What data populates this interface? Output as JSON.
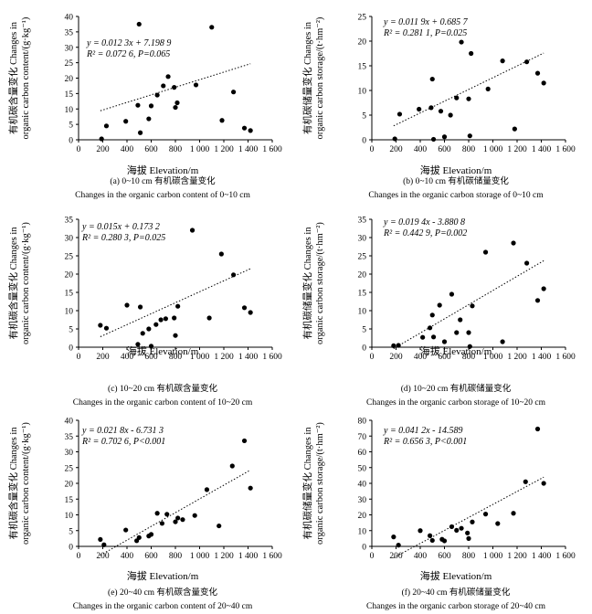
{
  "chart_data": [
    {
      "type": "scatter",
      "panel": "a",
      "ylabel_lines": [
        "有机碳含量变化 Changes in",
        "organic carbon content/(g·kg⁻¹)"
      ],
      "xlabel": "海拔 Elevation/m",
      "xticks": [
        "0",
        "200",
        "400",
        "600",
        "800",
        "1 000",
        "1 200",
        "1 400",
        "1 600"
      ],
      "xlim": [
        0,
        1600
      ],
      "yticks": [
        "0",
        "5",
        "10",
        "15",
        "20",
        "25",
        "30",
        "35",
        "40"
      ],
      "ylim": [
        0,
        40
      ],
      "equation": "y = 0.012 3x + 7.198 9",
      "r2": "R² = 0.072 6, P=0.065",
      "trend": [
        0.0123,
        7.1989
      ],
      "caption_cn": "(a) 0~10 cm 有机碳含量变化",
      "caption_en": "Changes in the organic carbon content of 0~10 cm",
      "points": [
        [
          190,
          0.3
        ],
        [
          230,
          4.5
        ],
        [
          390,
          6
        ],
        [
          490,
          11.2
        ],
        [
          500,
          37.5
        ],
        [
          510,
          2.3
        ],
        [
          580,
          6.8
        ],
        [
          600,
          11
        ],
        [
          650,
          14.5
        ],
        [
          700,
          17.5
        ],
        [
          740,
          20.5
        ],
        [
          790,
          17
        ],
        [
          800,
          10.5
        ],
        [
          815,
          12
        ],
        [
          970,
          17.8
        ],
        [
          1100,
          36.5
        ],
        [
          1185,
          6.3
        ],
        [
          1280,
          15.5
        ],
        [
          1370,
          3.8
        ],
        [
          1420,
          3
        ]
      ]
    },
    {
      "type": "scatter",
      "panel": "b",
      "ylabel_lines": [
        "有机碳储量变化 Changes in",
        "organic carbon storage/(t·hm⁻²)"
      ],
      "xlabel": "海拔 Elevation/m",
      "xticks": [
        "0",
        "200",
        "400",
        "600",
        "800",
        "1 000",
        "1 200",
        "1 400",
        "1 600"
      ],
      "xlim": [
        0,
        1600
      ],
      "yticks": [
        "0",
        "5",
        "10",
        "15",
        "20",
        "25"
      ],
      "ylim": [
        0,
        25
      ],
      "equation": "y = 0.011 9x + 0.685 7",
      "r2": "R² = 0.281 1, P=0.025",
      "trend": [
        0.0119,
        0.6857
      ],
      "caption_cn": "(b) 0~10 cm 有机碳储量变化",
      "caption_en": "Changes in the organic carbon storage of 0~10 cm",
      "points": [
        [
          190,
          0.2
        ],
        [
          230,
          5.2
        ],
        [
          390,
          6.2
        ],
        [
          490,
          6.5
        ],
        [
          500,
          12.3
        ],
        [
          510,
          0.1
        ],
        [
          570,
          5.8
        ],
        [
          600,
          0.6
        ],
        [
          650,
          5
        ],
        [
          700,
          8.5
        ],
        [
          740,
          19.8
        ],
        [
          800,
          8.3
        ],
        [
          810,
          0.8
        ],
        [
          820,
          17.5
        ],
        [
          960,
          10.3
        ],
        [
          1080,
          16
        ],
        [
          1180,
          2.2
        ],
        [
          1280,
          15.8
        ],
        [
          1370,
          13.5
        ],
        [
          1420,
          11.5
        ]
      ]
    },
    {
      "type": "scatter",
      "panel": "c",
      "ylabel_lines": [
        "有机碳含量变化 Changes in",
        "organic carbon content/(g·kg⁻¹)"
      ],
      "xlabel": "海拔 Elevation/m",
      "xticks": [
        "0",
        "200",
        "400",
        "600",
        "800",
        "1 000",
        "1 200",
        "1 400",
        "1 600"
      ],
      "xlim": [
        0,
        1600
      ],
      "yticks": [
        "0",
        "5",
        "10",
        "15",
        "20",
        "25",
        "30",
        "35"
      ],
      "ylim": [
        0,
        35
      ],
      "equation": "y = 0.015x + 0.173 2",
      "r2": "R² = 0.280 3, P=0.025",
      "trend": [
        0.015,
        0.1732
      ],
      "caption_cn": "(c) 10~20 cm 有机碳含量变化",
      "caption_en": "Changes in the organic carbon content of 10~20 cm",
      "points": [
        [
          180,
          6
        ],
        [
          230,
          5.2
        ],
        [
          400,
          11.5
        ],
        [
          490,
          0.8
        ],
        [
          510,
          11
        ],
        [
          530,
          3.8
        ],
        [
          580,
          5
        ],
        [
          600,
          0.3
        ],
        [
          640,
          6.2
        ],
        [
          680,
          7.5
        ],
        [
          720,
          7.8
        ],
        [
          790,
          8
        ],
        [
          800,
          3.2
        ],
        [
          820,
          11.2
        ],
        [
          940,
          32
        ],
        [
          1080,
          8
        ],
        [
          1180,
          25.5
        ],
        [
          1280,
          19.8
        ],
        [
          1370,
          10.8
        ],
        [
          1420,
          9.5
        ]
      ]
    },
    {
      "type": "scatter",
      "panel": "d",
      "ylabel_lines": [
        "有机碳储量变化 Changes in",
        "organic carbon storage/(t·hm⁻²)"
      ],
      "xlabel": "海拔 Elevation/m",
      "xticks": [
        "0",
        "200",
        "400",
        "600",
        "800",
        "1 000",
        "1 200",
        "1 400",
        "1 600"
      ],
      "xlim": [
        0,
        1600
      ],
      "yticks": [
        "0",
        "5",
        "10",
        "15",
        "20",
        "25",
        "30",
        "35"
      ],
      "ylim": [
        0,
        35
      ],
      "equation": "y = 0.019 4x - 3.880 8",
      "r2": "R² = 0.442 9, P=0.002",
      "trend": [
        0.0194,
        -3.8808
      ],
      "caption_cn": "(d) 10~20 cm 有机碳储量变化",
      "caption_en": "Changes in the organic carbon storage of 10~20 cm",
      "points": [
        [
          180,
          0.4
        ],
        [
          220,
          0.5
        ],
        [
          420,
          2.7
        ],
        [
          480,
          5.3
        ],
        [
          500,
          8.8
        ],
        [
          510,
          2.8
        ],
        [
          560,
          11.5
        ],
        [
          600,
          1.5
        ],
        [
          660,
          14.5
        ],
        [
          700,
          4
        ],
        [
          730,
          7.5
        ],
        [
          800,
          4
        ],
        [
          810,
          0.2
        ],
        [
          830,
          11.3
        ],
        [
          940,
          26
        ],
        [
          1080,
          1.5
        ],
        [
          1170,
          28.5
        ],
        [
          1280,
          23
        ],
        [
          1370,
          12.8
        ],
        [
          1420,
          16
        ]
      ]
    },
    {
      "type": "scatter",
      "panel": "e",
      "ylabel_lines": [
        "有机碳含量变化 Changes in",
        "organic carbon content/(g·kg⁻¹)"
      ],
      "xlabel": "海拔 Elevation/m",
      "xticks": [
        "0",
        "200",
        "400",
        "600",
        "800",
        "1 000",
        "1 200",
        "1 400",
        "1 600"
      ],
      "xlim": [
        0,
        1600
      ],
      "yticks": [
        "0",
        "5",
        "10",
        "15",
        "20",
        "25",
        "30",
        "35",
        "40"
      ],
      "ylim": [
        0,
        40
      ],
      "equation": "y = 0.021 8x - 6.731 3",
      "r2": "R² = 0.702 6, P<0.001",
      "trend": [
        0.0218,
        -6.7313
      ],
      "caption_cn": "(e) 20~40 cm 有机碳含量变化",
      "caption_en": "Changes in the organic carbon content of 20~40 cm",
      "points": [
        [
          180,
          2.2
        ],
        [
          210,
          0.5
        ],
        [
          390,
          5.2
        ],
        [
          480,
          1.8
        ],
        [
          500,
          2.8
        ],
        [
          580,
          3.3
        ],
        [
          600,
          3.8
        ],
        [
          650,
          10.5
        ],
        [
          690,
          7.3
        ],
        [
          730,
          10.2
        ],
        [
          800,
          7.8
        ],
        [
          820,
          9
        ],
        [
          860,
          8.5
        ],
        [
          960,
          9.8
        ],
        [
          1060,
          18
        ],
        [
          1160,
          6.5
        ],
        [
          1270,
          25.5
        ],
        [
          1370,
          33.5
        ],
        [
          1420,
          18.5
        ]
      ]
    },
    {
      "type": "scatter",
      "panel": "f",
      "ylabel_lines": [
        "有机碳储量变化 Changes in",
        "organic carbon storage/(t·hm⁻²)"
      ],
      "xlabel": "海拔 Elevation/m",
      "xticks": [
        "0",
        "200",
        "400",
        "600",
        "800",
        "1 000",
        "1 200",
        "1 400",
        "1 600"
      ],
      "xlim": [
        0,
        1600
      ],
      "yticks": [
        "0",
        "10",
        "20",
        "30",
        "40",
        "50",
        "60",
        "70",
        "80"
      ],
      "ylim": [
        0,
        80
      ],
      "equation": "y = 0.041 2x - 14.589",
      "r2": "R² = 0.656 3, P<0.001",
      "trend": [
        0.0412,
        -14.589
      ],
      "caption_cn": "(f) 20~40 cm 有机碳储量变化",
      "caption_en": "Changes in the organic carbon storage of 20~40 cm",
      "points": [
        [
          180,
          6
        ],
        [
          220,
          0.8
        ],
        [
          400,
          10
        ],
        [
          480,
          6.8
        ],
        [
          500,
          3.8
        ],
        [
          580,
          4.5
        ],
        [
          600,
          3.5
        ],
        [
          660,
          12.5
        ],
        [
          700,
          10.2
        ],
        [
          740,
          11.5
        ],
        [
          790,
          8.5
        ],
        [
          800,
          5
        ],
        [
          830,
          15.5
        ],
        [
          940,
          20.5
        ],
        [
          1040,
          14.5
        ],
        [
          1170,
          21
        ],
        [
          1270,
          41
        ],
        [
          1370,
          74.5
        ],
        [
          1420,
          40
        ]
      ]
    }
  ]
}
